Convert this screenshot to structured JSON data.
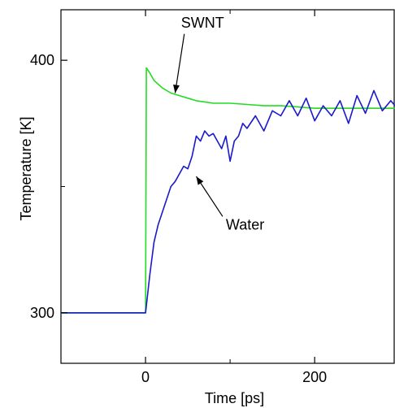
{
  "chart_data": {
    "type": "line",
    "xlabel": "Time [ps]",
    "ylabel": "Temperature [K]",
    "xlim": [
      -100,
      295
    ],
    "ylim": [
      280,
      420
    ],
    "xticks": [
      0,
      200
    ],
    "xtick_labels": [
      "0",
      "200"
    ],
    "yticks": [
      300,
      400
    ],
    "ytick_labels": [
      "300",
      "400"
    ],
    "grid": false,
    "legend": "none",
    "series": [
      {
        "name": "SWNT",
        "color": "#22dd22",
        "x": [
          -100,
          -80,
          -60,
          -40,
          -20,
          -5,
          0,
          1,
          5,
          10,
          20,
          30,
          40,
          50,
          60,
          70,
          80,
          90,
          100,
          120,
          140,
          160,
          180,
          200,
          220,
          240,
          260,
          280,
          295
        ],
        "y": [
          300,
          300,
          300,
          300,
          300,
          300,
          300,
          397,
          395,
          392,
          389,
          387,
          386,
          385,
          384,
          383.5,
          383,
          383,
          383,
          382.5,
          382,
          382,
          381.5,
          381,
          381,
          381,
          381,
          381,
          381
        ]
      },
      {
        "name": "Water",
        "color": "#1a1acc",
        "x": [
          -100,
          -80,
          -60,
          -40,
          -20,
          -5,
          0,
          5,
          10,
          15,
          20,
          25,
          30,
          35,
          40,
          45,
          50,
          55,
          60,
          65,
          70,
          75,
          80,
          85,
          90,
          95,
          100,
          105,
          110,
          115,
          120,
          130,
          140,
          150,
          160,
          170,
          180,
          190,
          200,
          210,
          220,
          230,
          240,
          250,
          260,
          270,
          280,
          290,
          295
        ],
        "y": [
          300,
          300,
          300,
          300,
          300,
          300,
          300,
          315,
          328,
          335,
          340,
          345,
          350,
          352,
          355,
          358,
          357,
          362,
          370,
          368,
          372,
          370,
          371,
          368,
          365,
          370,
          360,
          368,
          370,
          375,
          373,
          378,
          372,
          380,
          378,
          384,
          378,
          385,
          376,
          382,
          378,
          384,
          375,
          386,
          379,
          388,
          380,
          384,
          382
        ]
      }
    ],
    "annotations": [
      {
        "text": "SWNT",
        "series": "SWNT",
        "label_x": 42,
        "label_y": 413,
        "arrow_x": 35,
        "arrow_y": 387
      },
      {
        "text": "Water",
        "series": "Water",
        "label_x": 95,
        "label_y": 333,
        "arrow_x": 60,
        "arrow_y": 354
      }
    ]
  }
}
